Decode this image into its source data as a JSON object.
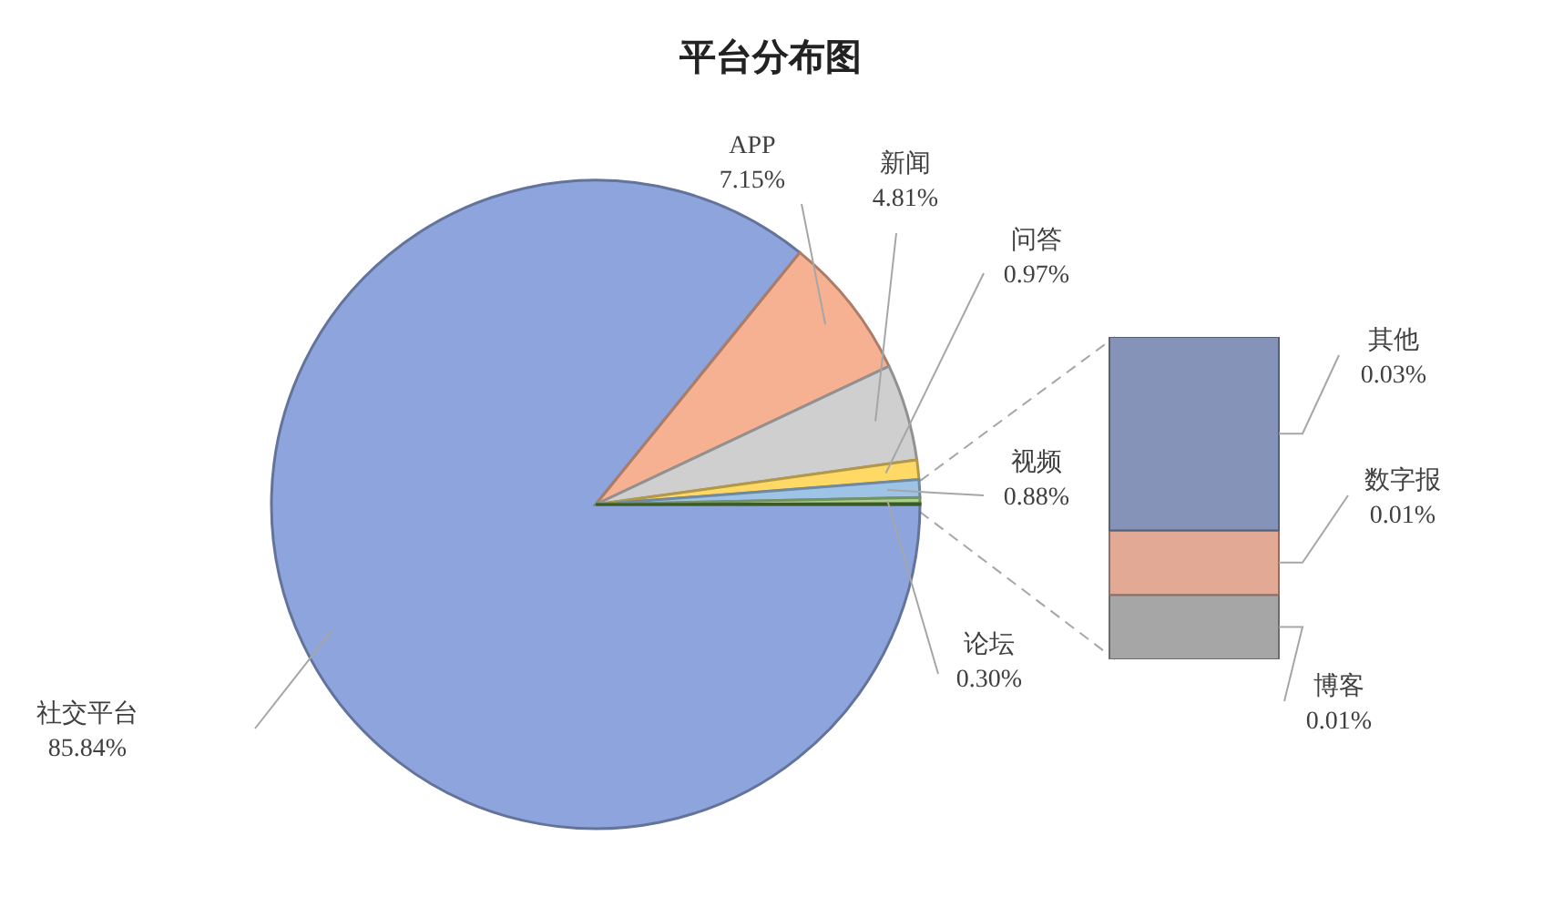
{
  "chart_data": [
    {
      "type": "pie",
      "title": "平台分布图",
      "categories": [
        "社交平台",
        "APP",
        "新闻",
        "问答",
        "视频",
        "论坛",
        null
      ],
      "values": [
        85.84,
        7.15,
        4.81,
        0.97,
        0.88,
        0.3,
        0.05
      ],
      "colors": [
        "#8ea4dc",
        "#f5b192",
        "#cfcfcf",
        "#ffd966",
        "#9dc3e6",
        "#a9d18e",
        "#548235"
      ],
      "value_labels": [
        "85.84%",
        "7.15%",
        "4.81%",
        "0.97%",
        "0.88%",
        "0.30%",
        null
      ],
      "legend": false
    },
    {
      "type": "bar",
      "stacked": true,
      "categories": [
        null
      ],
      "series": [
        {
          "name": "博客",
          "color": "#a6a6a6",
          "values": [
            0.01
          ],
          "value_labels": [
            "0.01%"
          ]
        },
        {
          "name": "数字报",
          "color": "#e2a994",
          "values": [
            0.01
          ],
          "value_labels": [
            "0.01%"
          ]
        },
        {
          "name": "其他",
          "color": "#8593b8",
          "values": [
            0.03
          ],
          "value_labels": [
            "0.03%"
          ]
        }
      ],
      "legend": false
    }
  ]
}
